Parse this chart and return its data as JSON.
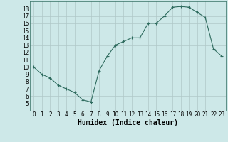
{
  "xlabel": "Humidex (Indice chaleur)",
  "x": [
    0,
    1,
    2,
    3,
    4,
    5,
    6,
    7,
    8,
    9,
    10,
    11,
    12,
    13,
    14,
    15,
    16,
    17,
    18,
    19,
    20,
    21,
    22,
    23
  ],
  "y": [
    10,
    9,
    8.5,
    7.5,
    7,
    6.5,
    5.5,
    5.2,
    9.5,
    11.5,
    13,
    13.5,
    14,
    14,
    16,
    16.0,
    17,
    18.2,
    18.3,
    18.2,
    17.5,
    16.8,
    12.5,
    11.5
  ],
  "ylim": [
    4,
    19
  ],
  "xlim": [
    -0.5,
    23.5
  ],
  "yticks": [
    5,
    6,
    7,
    8,
    9,
    10,
    11,
    12,
    13,
    14,
    15,
    16,
    17,
    18
  ],
  "xticks": [
    0,
    1,
    2,
    3,
    4,
    5,
    6,
    7,
    8,
    9,
    10,
    11,
    12,
    13,
    14,
    15,
    16,
    17,
    18,
    19,
    20,
    21,
    22,
    23
  ],
  "line_color": "#2e6b5e",
  "marker_color": "#2e6b5e",
  "bg_color": "#cde8e8",
  "grid_color": "#b0c8c8",
  "xlabel_fontsize": 7,
  "tick_fontsize": 5.5
}
